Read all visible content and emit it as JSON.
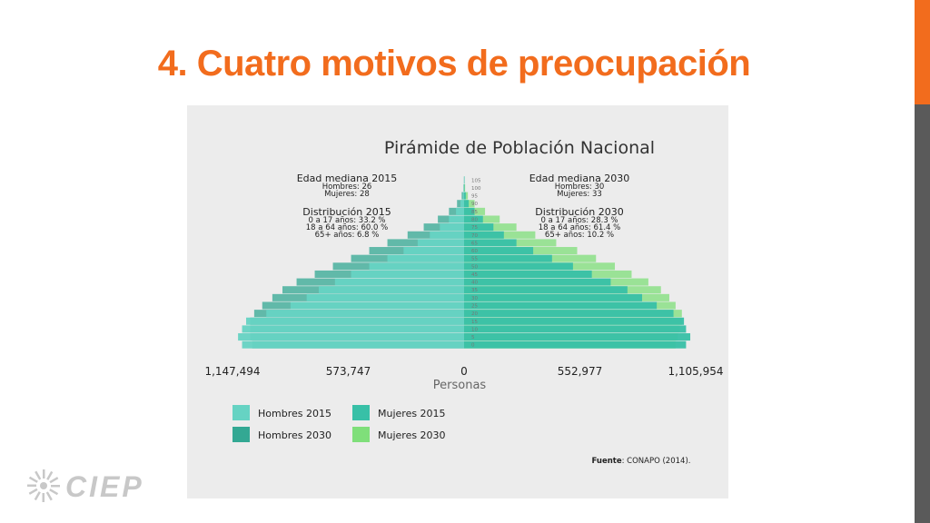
{
  "slide": {
    "title": "4. Cuatro motivos de preocupación",
    "logo_text": "CIEP"
  },
  "colors": {
    "accent": "#f26c1d",
    "side_bar": "#5a5a5a"
  },
  "chart_data": {
    "type": "bar",
    "orientation": "horizontal-pyramid",
    "title": "Pirámide de Población Nacional",
    "xlabel": "Personas",
    "x_ticks": [
      "1,147,494",
      "573,747",
      "0",
      "552,977",
      "1,105,954"
    ],
    "xlim_left": 1147494,
    "xlim_right": 1105954,
    "y_ticks": [
      "105",
      "100",
      "95",
      "90",
      "85",
      "80",
      "75",
      "70",
      "65",
      "60",
      "55",
      "50",
      "45",
      "40",
      "35",
      "30",
      "25",
      "20",
      "15",
      "10",
      "5",
      "0"
    ],
    "ages": [
      0,
      5,
      10,
      15,
      20,
      25,
      30,
      35,
      40,
      45,
      50,
      55,
      60,
      65,
      70,
      75,
      80,
      85,
      90,
      95,
      100,
      105
    ],
    "series": [
      {
        "name": "Hombres 2015",
        "color": "#66d3c3",
        "side": "left",
        "values": [
          1100000,
          1120000,
          1100000,
          1080000,
          980000,
          860000,
          780000,
          720000,
          640000,
          560000,
          470000,
          380000,
          300000,
          230000,
          170000,
          120000,
          75000,
          40000,
          18000,
          6000,
          2000,
          500
        ]
      },
      {
        "name": "Mujeres 2015",
        "color": "#38c0a7",
        "side": "right",
        "values": [
          1060000,
          1080000,
          1060000,
          1050000,
          1000000,
          920000,
          850000,
          780000,
          700000,
          610000,
          520000,
          420000,
          330000,
          250000,
          190000,
          140000,
          90000,
          50000,
          22000,
          8000,
          2000,
          500
        ]
      },
      {
        "name": "Hombres 2030",
        "color": "#33a893",
        "side": "left",
        "values": [
          1050000,
          1060000,
          1060000,
          1060000,
          1040000,
          1000000,
          950000,
          900000,
          830000,
          740000,
          650000,
          560000,
          470000,
          380000,
          280000,
          200000,
          130000,
          75000,
          35000,
          12000,
          3000,
          800
        ]
      },
      {
        "name": "Mujeres 2030",
        "color": "#7fdf7a",
        "side": "right",
        "values": [
          1010000,
          1020000,
          1030000,
          1040000,
          1040000,
          1010000,
          980000,
          940000,
          880000,
          800000,
          720000,
          630000,
          540000,
          440000,
          340000,
          250000,
          170000,
          100000,
          50000,
          18000,
          5000,
          1000
        ]
      }
    ],
    "annotations": {
      "left": {
        "median_title": "Edad mediana 2015",
        "median_lines": [
          "Hombres: 26",
          "Mujeres: 28"
        ],
        "dist_title": "Distribución 2015",
        "dist_lines": [
          "0 a 17 años: 33.2 %",
          "18 a 64 años: 60.0 %",
          "65+ años: 6.8 %"
        ]
      },
      "right": {
        "median_title": "Edad mediana 2030",
        "median_lines": [
          "Hombres: 30",
          "Mujeres: 33"
        ],
        "dist_title": "Distribución 2030",
        "dist_lines": [
          "0 a 17 años: 28.3 %",
          "18 a 64 años: 61.4 %",
          "65+ años: 10.2 %"
        ]
      }
    },
    "legend_placement": "bottom-left",
    "source_label": "Fuente",
    "source_text": ": CONAPO (2014)."
  }
}
